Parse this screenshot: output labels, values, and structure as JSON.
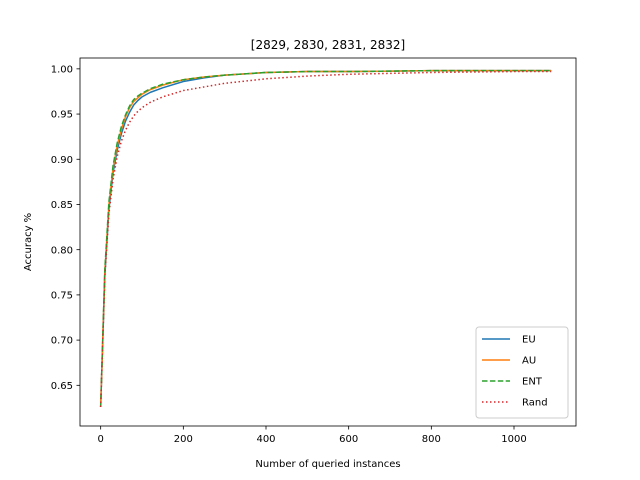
{
  "chart_data": {
    "type": "line",
    "title": "[2829, 2830, 2831, 2832]",
    "xlabel": "Number of queried instances",
    "ylabel": "Accuracy %",
    "xlim": [
      -50,
      1150
    ],
    "ylim": [
      0.605,
      1.012
    ],
    "xticks": [
      0,
      200,
      400,
      600,
      800,
      1000
    ],
    "yticks": [
      0.65,
      0.7,
      0.75,
      0.8,
      0.85,
      0.9,
      0.95,
      1.0
    ],
    "grid": false,
    "legend_position": "lower-right",
    "series": [
      {
        "name": "EU",
        "color": "#1f77b4",
        "style": "solid",
        "x": [
          0,
          10,
          20,
          30,
          40,
          50,
          60,
          70,
          80,
          90,
          100,
          120,
          150,
          200,
          250,
          300,
          400,
          500,
          600,
          800,
          1000,
          1090
        ],
        "y": [
          0.626,
          0.77,
          0.845,
          0.885,
          0.91,
          0.928,
          0.942,
          0.952,
          0.96,
          0.965,
          0.969,
          0.974,
          0.979,
          0.986,
          0.99,
          0.993,
          0.996,
          0.997,
          0.997,
          0.998,
          0.998,
          0.998
        ]
      },
      {
        "name": "AU",
        "color": "#ff7f0e",
        "style": "solid",
        "x": [
          0,
          10,
          20,
          30,
          40,
          50,
          60,
          70,
          80,
          90,
          100,
          120,
          150,
          200,
          250,
          300,
          400,
          500,
          600,
          800,
          1000,
          1090
        ],
        "y": [
          0.626,
          0.775,
          0.85,
          0.89,
          0.915,
          0.933,
          0.947,
          0.957,
          0.964,
          0.968,
          0.972,
          0.977,
          0.982,
          0.988,
          0.991,
          0.993,
          0.996,
          0.997,
          0.997,
          0.998,
          0.998,
          0.998
        ]
      },
      {
        "name": "ENT",
        "color": "#2ca02c",
        "style": "dashed",
        "x": [
          0,
          10,
          20,
          30,
          40,
          50,
          60,
          70,
          80,
          90,
          100,
          120,
          150,
          200,
          250,
          300,
          400,
          500,
          600,
          800,
          1000,
          1090
        ],
        "y": [
          0.626,
          0.778,
          0.853,
          0.893,
          0.918,
          0.936,
          0.949,
          0.959,
          0.966,
          0.97,
          0.973,
          0.978,
          0.983,
          0.988,
          0.991,
          0.993,
          0.996,
          0.997,
          0.997,
          0.998,
          0.998,
          0.998
        ]
      },
      {
        "name": "Rand",
        "color": "#d62728",
        "style": "dotted",
        "x": [
          0,
          10,
          20,
          30,
          40,
          50,
          60,
          70,
          80,
          90,
          100,
          120,
          150,
          200,
          250,
          300,
          400,
          500,
          600,
          800,
          1000,
          1090
        ],
        "y": [
          0.626,
          0.77,
          0.84,
          0.878,
          0.903,
          0.92,
          0.932,
          0.941,
          0.948,
          0.953,
          0.957,
          0.963,
          0.969,
          0.976,
          0.98,
          0.984,
          0.989,
          0.992,
          0.994,
          0.996,
          0.997,
          0.997
        ]
      }
    ]
  }
}
